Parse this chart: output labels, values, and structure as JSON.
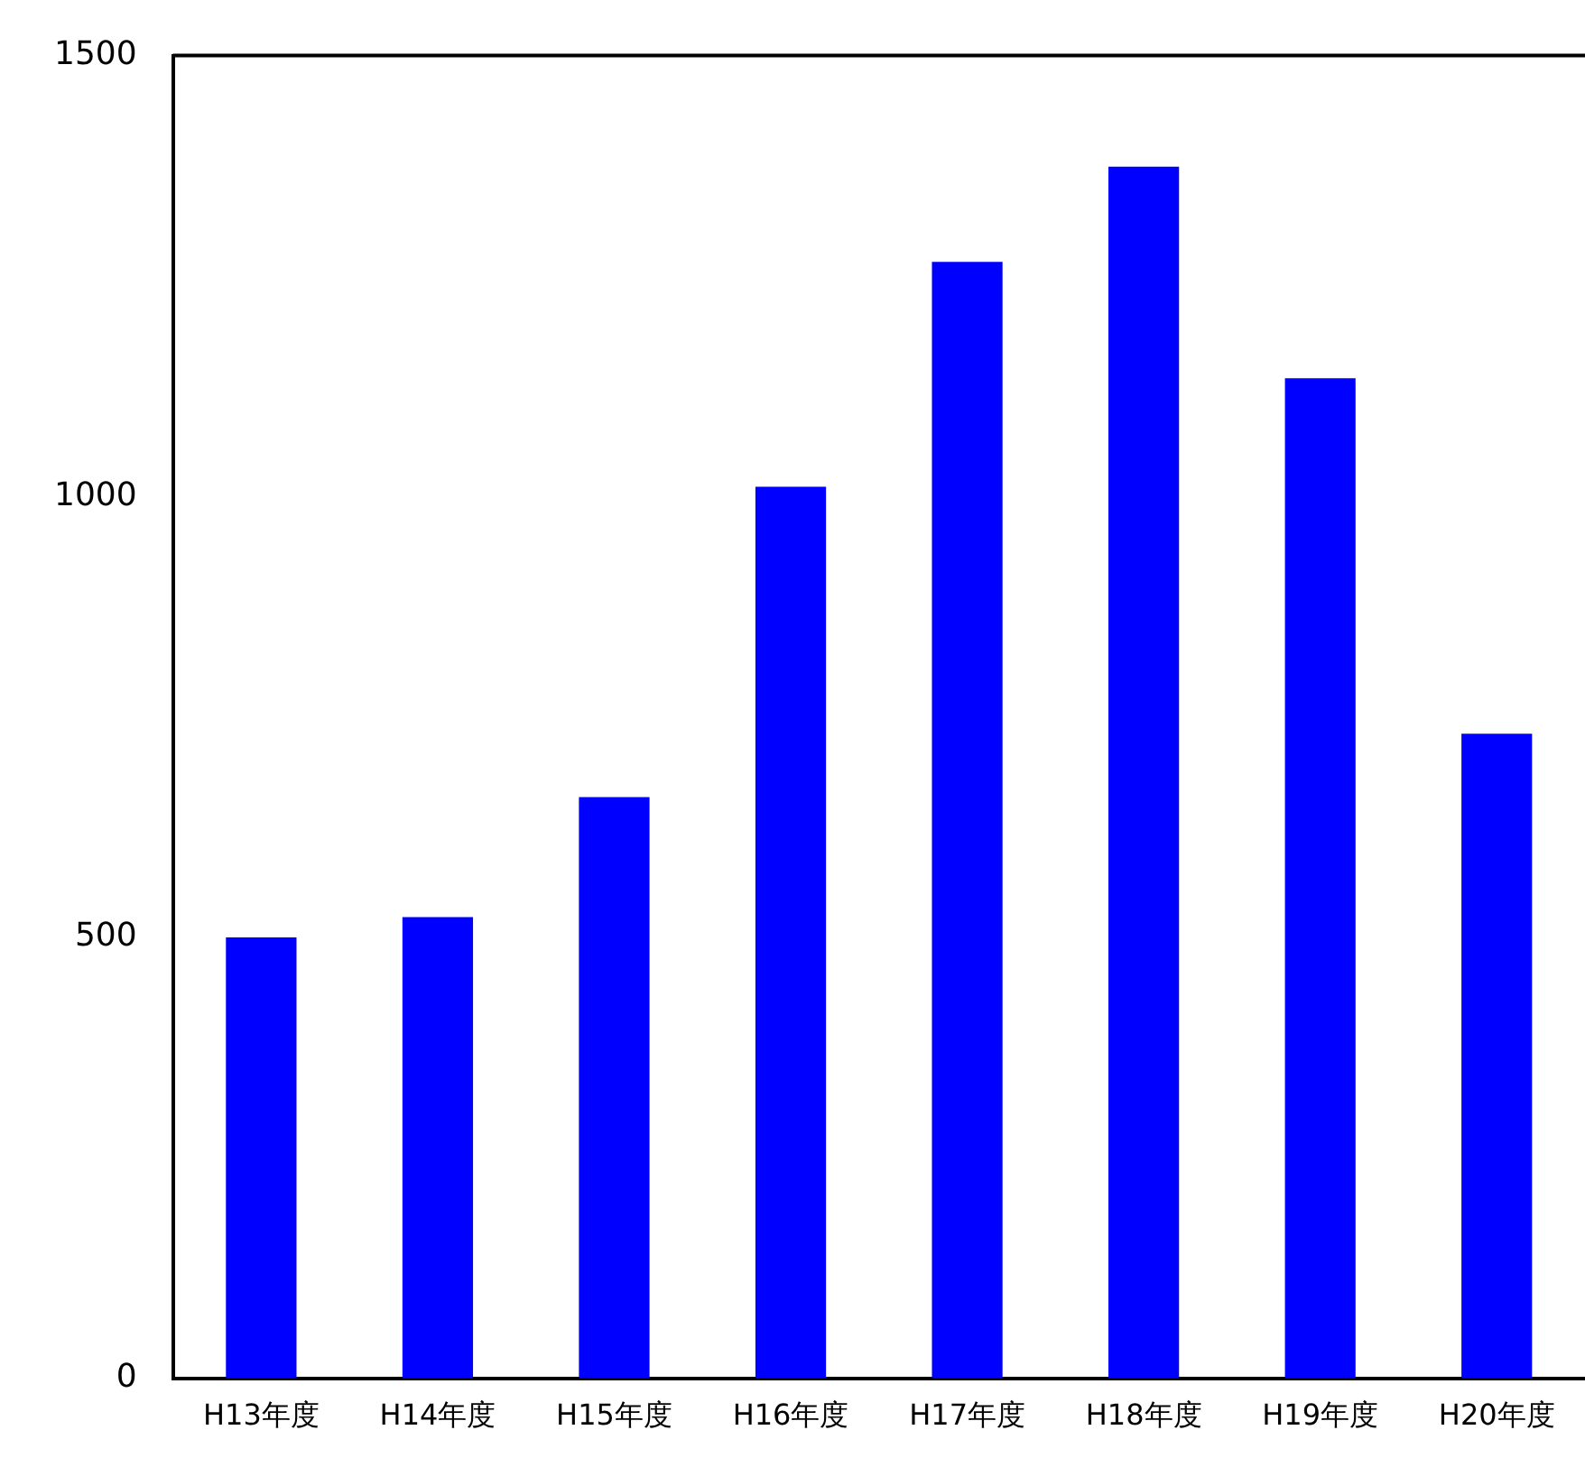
{
  "chart_data": {
    "type": "bar",
    "categories": [
      "H13年度",
      "H14年度",
      "H15年度",
      "H16年度",
      "H17年度",
      "H18年度",
      "H19年度",
      "H20年度"
    ],
    "values": [
      500,
      523,
      659,
      1011,
      1266,
      1374,
      1134,
      731
    ],
    "color": "#0000ff",
    "ylim": [
      0,
      1500
    ],
    "yticks": [
      0,
      500,
      1000,
      1500
    ],
    "grid": false,
    "legend": false
  }
}
